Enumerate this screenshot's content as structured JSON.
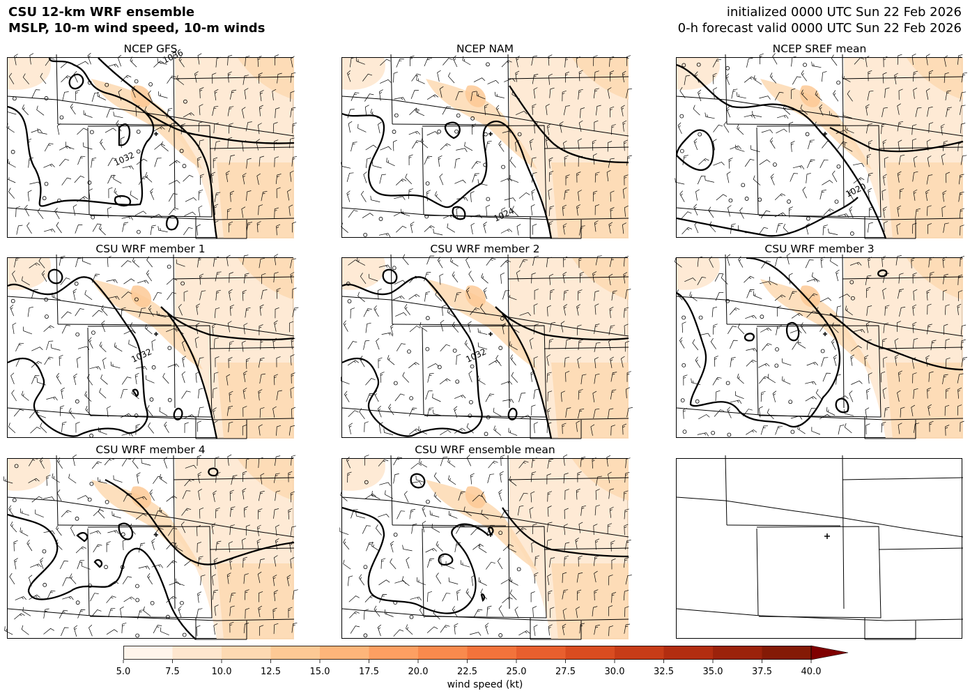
{
  "header": {
    "title_line1": "CSU 12-km WRF ensemble",
    "title_line2": "MSLP, 10-m wind speed, 10-m winds",
    "init_line": "initialized 0000 UTC Sun 22 Feb 2026",
    "valid_line": "0-h forecast valid 0000 UTC Sun 22 Feb 2026"
  },
  "panels": [
    {
      "title": "NCEP GFS",
      "isobar_labels": [
        "1036",
        "1032"
      ]
    },
    {
      "title": "NCEP NAM",
      "isobar_labels": [
        "1024"
      ]
    },
    {
      "title": "NCEP SREF mean",
      "isobar_labels": [
        "1020"
      ]
    },
    {
      "title": "CSU WRF member 1",
      "isobar_labels": [
        "1032"
      ]
    },
    {
      "title": "CSU WRF member 2",
      "isobar_labels": [
        "1032"
      ]
    },
    {
      "title": "CSU WRF member 3",
      "isobar_labels": []
    },
    {
      "title": "CSU WRF member 4",
      "isobar_labels": []
    },
    {
      "title": "CSU WRF ensemble mean",
      "isobar_labels": []
    },
    {
      "title": "",
      "isobar_labels": []
    }
  ],
  "colorbar": {
    "title": "wind speed (kt)",
    "ticks": [
      "5.0",
      "7.5",
      "10.0",
      "12.5",
      "15.0",
      "17.5",
      "20.0",
      "22.5",
      "25.0",
      "27.5",
      "30.0",
      "32.5",
      "35.0",
      "37.5",
      "40.0"
    ],
    "colors": [
      "#fff5eb",
      "#fee6ce",
      "#fdd9b2",
      "#fdc995",
      "#fdb57a",
      "#fd9f62",
      "#f98a4d",
      "#f3733b",
      "#e85f2e",
      "#d94c20",
      "#c73c17",
      "#b22d10",
      "#9b220b",
      "#841a06"
    ],
    "extend_color": "#7f0000"
  }
}
